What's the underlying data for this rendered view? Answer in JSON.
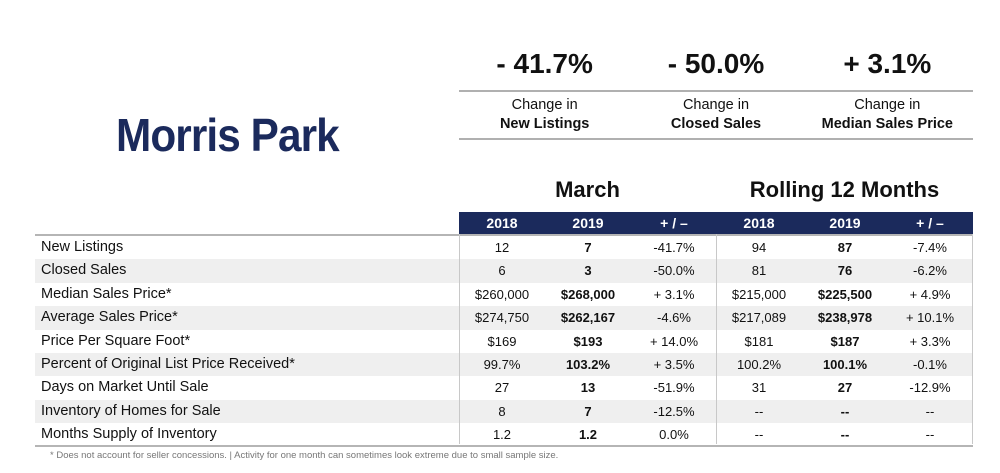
{
  "title": "Morris Park",
  "kpis": [
    {
      "value": "- 41.7%",
      "line1": "Change in",
      "line2": "New Listings"
    },
    {
      "value": "- 50.0%",
      "line1": "Change in",
      "line2": "Closed Sales"
    },
    {
      "value": "+ 3.1%",
      "line1": "Change in",
      "line2": "Median Sales Price"
    }
  ],
  "groups": {
    "month": "March",
    "rolling": "Rolling 12 Months"
  },
  "columns": [
    "2018",
    "2019",
    "+ / –",
    "2018",
    "2019",
    "+ / –"
  ],
  "rows": [
    {
      "label": "New Listings",
      "cells": [
        "12",
        "7",
        "-41.7%",
        "94",
        "87",
        "-7.4%"
      ]
    },
    {
      "label": "Closed Sales",
      "cells": [
        "6",
        "3",
        "-50.0%",
        "81",
        "76",
        "-6.2%"
      ]
    },
    {
      "label": "Median Sales Price*",
      "cells": [
        "$260,000",
        "$268,000",
        "+ 3.1%",
        "$215,000",
        "$225,500",
        "+ 4.9%"
      ]
    },
    {
      "label": "Average Sales Price*",
      "cells": [
        "$274,750",
        "$262,167",
        "-4.6%",
        "$217,089",
        "$238,978",
        "+ 10.1%"
      ]
    },
    {
      "label": "Price Per Square Foot*",
      "cells": [
        "$169",
        "$193",
        "+ 14.0%",
        "$181",
        "$187",
        "+ 3.3%"
      ]
    },
    {
      "label": "Percent of Original List Price Received*",
      "cells": [
        "99.7%",
        "103.2%",
        "+ 3.5%",
        "100.2%",
        "100.1%",
        "-0.1%"
      ]
    },
    {
      "label": "Days on Market Until Sale",
      "cells": [
        "27",
        "13",
        "-51.9%",
        "31",
        "27",
        "-12.9%"
      ]
    },
    {
      "label": "Inventory of Homes for Sale",
      "cells": [
        "8",
        "7",
        "-12.5%",
        "--",
        "--",
        "--"
      ]
    },
    {
      "label": "Months Supply of Inventory",
      "cells": [
        "1.2",
        "1.2",
        "0.0%",
        "--",
        "--",
        "--"
      ]
    }
  ],
  "footnote": "* Does not account for seller concessions.  |  Activity for one month can sometimes look extreme due to small sample size."
}
